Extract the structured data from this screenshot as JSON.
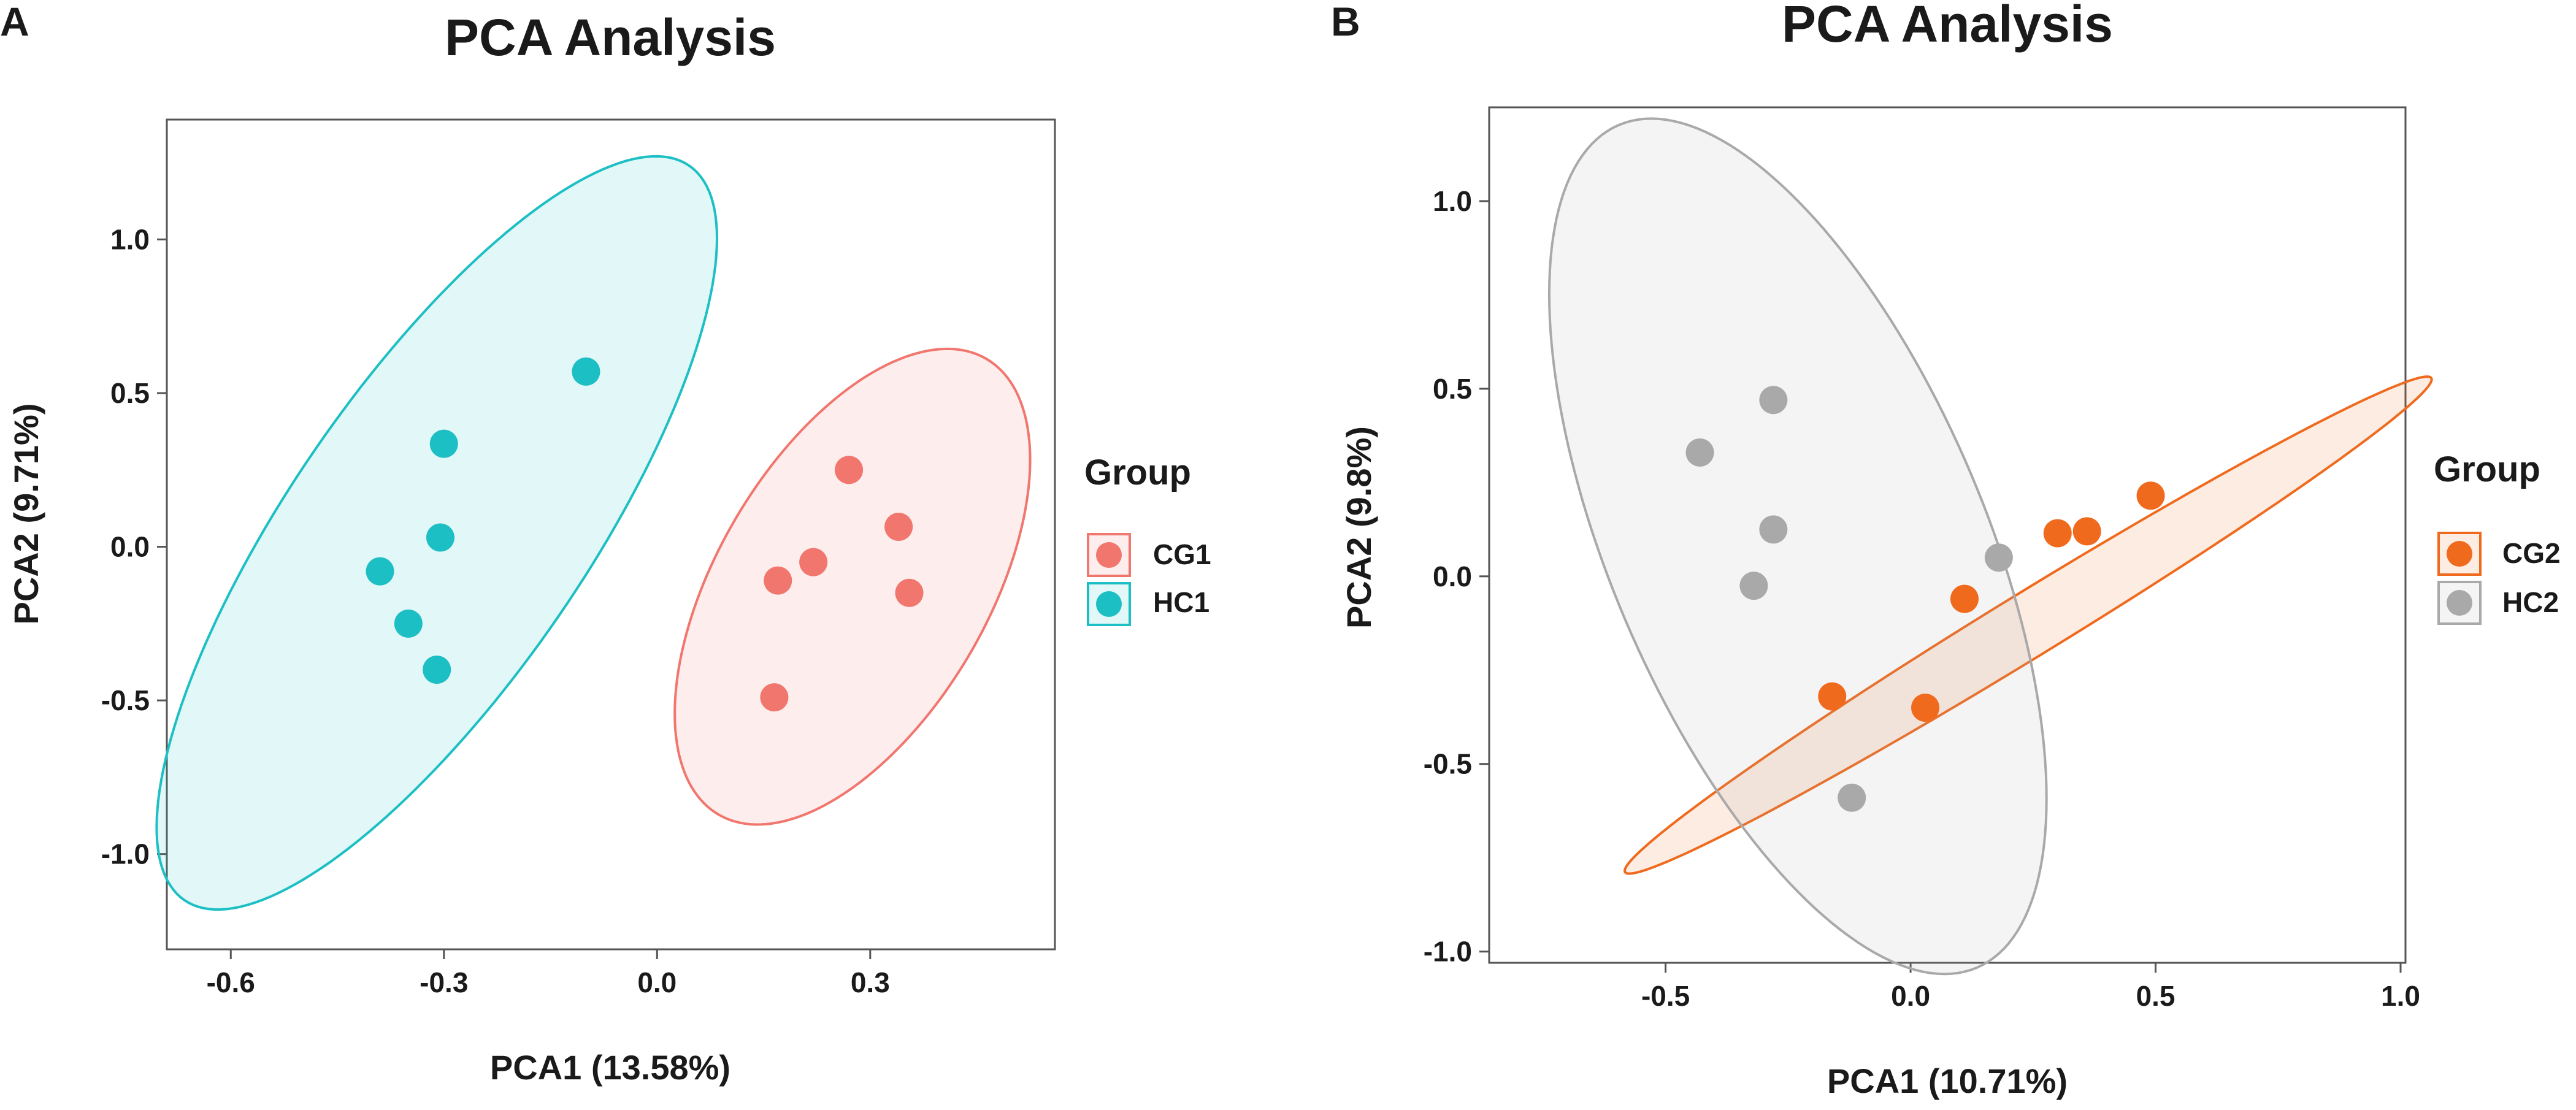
{
  "colors": {
    "CG1": "#F0766E",
    "HC1": "#1CBFC4",
    "CG2": "#F06A1E",
    "HC2": "#A9A9A9",
    "text": "#1a1a1a",
    "frame": "#555555"
  },
  "chart_data": [
    {
      "type": "scatter",
      "panel": "A",
      "title": "PCA Analysis",
      "xlabel": "PCA1 (13.58%)",
      "ylabel": "PCA2 (9.71%)",
      "xlim": [
        -0.69,
        0.56
      ],
      "ylim": [
        -1.31,
        1.39
      ],
      "xticks": [
        -0.6,
        -0.3,
        0.0,
        0.3
      ],
      "xtick_labels": [
        "-0.6",
        "-0.3",
        "0.0",
        "0.3"
      ],
      "yticks": [
        -1.0,
        -0.5,
        0.0,
        0.5,
        1.0
      ],
      "ytick_labels": [
        "-1.0",
        "-0.5",
        "0.0",
        "0.5",
        "1.0"
      ],
      "grid": false,
      "legend": {
        "title": "Group",
        "position": "right"
      },
      "series": [
        {
          "name": "CG1",
          "color": "#F0766E",
          "x": [
            0.27,
            0.34,
            0.17,
            0.22,
            0.355,
            0.165
          ],
          "y": [
            0.25,
            0.065,
            -0.11,
            -0.05,
            -0.15,
            -0.49
          ],
          "ellipse": {
            "cx": 0.275,
            "cy": -0.13,
            "semi_major": 0.86,
            "semi_minor": 0.44,
            "angle_deg": 59.5
          }
        },
        {
          "name": "HC1",
          "color": "#1CBFC4",
          "x": [
            -0.1,
            -0.3,
            -0.305,
            -0.39,
            -0.35,
            -0.31
          ],
          "y": [
            0.57,
            0.335,
            0.03,
            -0.08,
            -0.25,
            -0.4
          ],
          "ellipse": {
            "cx": -0.31,
            "cy": 0.045,
            "semi_major": 1.45,
            "semi_minor": 0.48,
            "angle_deg": 55.5
          }
        }
      ]
    },
    {
      "type": "scatter",
      "panel": "B",
      "title": "PCA Analysis",
      "xlabel": "PCA1 (10.71%)",
      "ylabel": "PCA2 (9.8%)",
      "xlim": [
        -0.86,
        1.01
      ],
      "ylim": [
        -1.03,
        1.25
      ],
      "xticks": [
        -0.5,
        0.0,
        0.5,
        1.0
      ],
      "xtick_labels": [
        "-0.5",
        "0.0",
        "0.5",
        "1.0"
      ],
      "yticks": [
        -1.0,
        -0.5,
        0.0,
        0.5,
        1.0
      ],
      "ytick_labels": [
        "-1.0",
        "-0.5",
        "0.0",
        "0.5",
        "1.0"
      ],
      "grid": false,
      "legend": {
        "title": "Group",
        "position": "right"
      },
      "series": [
        {
          "name": "CG2",
          "color": "#F06A1E",
          "x": [
            0.49,
            0.36,
            0.3,
            0.11,
            -0.16,
            0.03
          ],
          "y": [
            0.215,
            0.12,
            0.115,
            -0.06,
            -0.32,
            -0.35
          ],
          "ellipse": {
            "cx": 0.24,
            "cy": -0.13,
            "semi_major": 1.26,
            "semi_minor": 0.085,
            "angle_deg": 31.5
          }
        },
        {
          "name": "HC2",
          "color": "#A9A9A9",
          "x": [
            -0.28,
            -0.43,
            -0.28,
            -0.32,
            0.18,
            -0.12
          ],
          "y": [
            0.47,
            0.33,
            0.125,
            -0.025,
            0.05,
            -0.59
          ],
          "ellipse": {
            "cx": -0.23,
            "cy": 0.08,
            "semi_major": 1.22,
            "semi_minor": 0.5,
            "angle_deg": -67
          }
        }
      ]
    }
  ]
}
